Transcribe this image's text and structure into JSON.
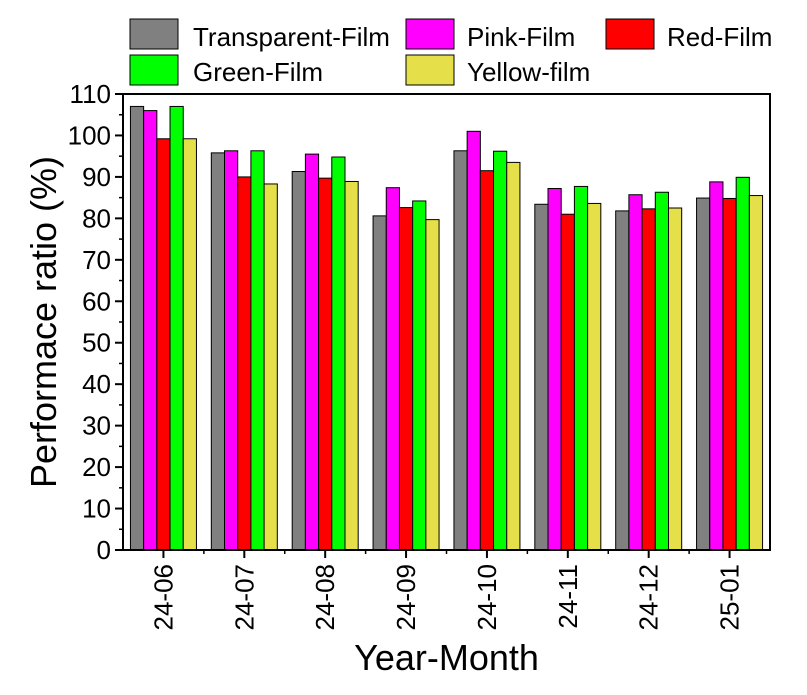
{
  "chart_data": {
    "type": "bar",
    "title": "",
    "xlabel": "Year-Month",
    "ylabel": "Performace ratio (%)",
    "categories": [
      "24-06",
      "24-07",
      "24-08",
      "24-09",
      "24-10",
      "24-11",
      "24-12",
      "25-01"
    ],
    "ylim": [
      0,
      110
    ],
    "yticks": [
      0,
      10,
      20,
      30,
      40,
      50,
      60,
      70,
      80,
      90,
      100,
      110
    ],
    "grid": false,
    "legend_position": "top",
    "series": [
      {
        "name": "Transparent-Film",
        "color": "#808080",
        "values": [
          107,
          95.8,
          91.3,
          80.6,
          96.3,
          83.4,
          81.8,
          84.9
        ]
      },
      {
        "name": "Pink-Film",
        "color": "#ff00ff",
        "values": [
          106,
          96.3,
          95.5,
          87.4,
          101,
          87.2,
          85.7,
          88.8
        ]
      },
      {
        "name": "Red-Film",
        "color": "#ff0000",
        "values": [
          99.2,
          90,
          89.7,
          82.6,
          91.5,
          81,
          82.3,
          84.8
        ]
      },
      {
        "name": "Green-Film",
        "color": "#00ff00",
        "values": [
          107,
          96.3,
          94.8,
          84.2,
          96.2,
          87.7,
          86.3,
          89.9
        ]
      },
      {
        "name": "Yellow-film",
        "color": "#e5df49",
        "values": [
          99.2,
          88.3,
          88.9,
          79.7,
          93.5,
          83.6,
          82.5,
          85.5
        ]
      }
    ]
  }
}
